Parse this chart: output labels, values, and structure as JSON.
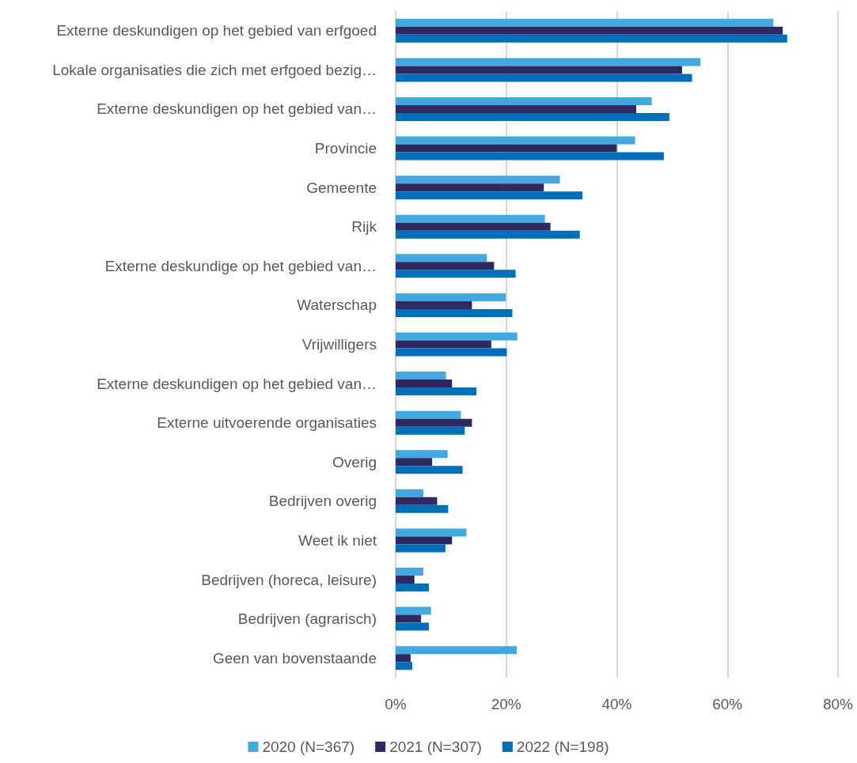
{
  "chart_data": {
    "type": "bar",
    "orientation": "horizontal",
    "categories": [
      "Externe deskundigen op het gebied van erfgoed",
      "Lokale organisaties die zich met erfgoed bezig…",
      "Externe deskundigen op het gebied van…",
      "Provincie",
      "Gemeente",
      "Rijk",
      "Externe deskundige op het gebied van…",
      "Waterschap",
      "Vrijwilligers",
      "Externe deskundigen op het gebied van…",
      "Externe uitvoerende organisaties",
      "Overig",
      "Bedrijven overig",
      "Weet ik niet",
      "Bedrijven (horeca, leisure)",
      "Bedrijven (agrarisch)",
      "Geen van bovenstaande"
    ],
    "series": [
      {
        "name": "2020 (N=367)",
        "color": "#41a9df",
        "values": [
          68.3,
          55.1,
          46.3,
          43.3,
          29.7,
          27.0,
          16.5,
          19.9,
          22.0,
          9.1,
          11.8,
          9.4,
          5.0,
          12.8,
          5.0,
          6.4,
          21.9
        ]
      },
      {
        "name": "2021 (N=307)",
        "color": "#2e2a61",
        "values": [
          70.0,
          51.8,
          43.5,
          40.0,
          26.8,
          28.0,
          17.8,
          13.8,
          17.3,
          10.2,
          13.8,
          6.6,
          7.5,
          10.2,
          3.4,
          4.6,
          2.7
        ]
      },
      {
        "name": "2022 (N=198)",
        "color": "#006fb9",
        "values": [
          70.8,
          53.6,
          49.5,
          48.5,
          33.8,
          33.3,
          21.7,
          21.1,
          20.1,
          14.6,
          12.5,
          12.1,
          9.5,
          9.0,
          6.0,
          6.0,
          3.0
        ]
      }
    ],
    "xlim": [
      0,
      80
    ],
    "xticks": [
      {
        "value": 0,
        "label": "0%"
      },
      {
        "value": 20,
        "label": "20%"
      },
      {
        "value": 40,
        "label": "40%"
      },
      {
        "value": 60,
        "label": "60%"
      },
      {
        "value": 80,
        "label": "80%"
      }
    ],
    "grid": "x",
    "legend": "bottom"
  }
}
